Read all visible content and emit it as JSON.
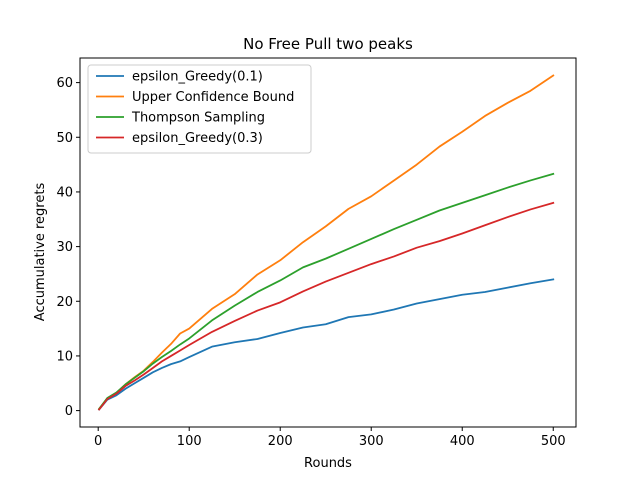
{
  "chart_data": {
    "type": "line",
    "title": "No Free Pull two peaks",
    "xlabel": "Rounds",
    "ylabel": "Accumulative regrets",
    "xlim": [
      -20,
      525
    ],
    "ylim": [
      -3,
      64.5
    ],
    "xticks": [
      0,
      100,
      200,
      300,
      400,
      500
    ],
    "yticks": [
      0,
      10,
      20,
      30,
      40,
      50,
      60
    ],
    "grid": false,
    "legend_position": "upper-left",
    "x": [
      1,
      10,
      20,
      30,
      40,
      50,
      60,
      70,
      80,
      90,
      100,
      125,
      150,
      175,
      200,
      225,
      250,
      275,
      300,
      325,
      350,
      375,
      400,
      425,
      450,
      475,
      500
    ],
    "series": [
      {
        "name": "epsilon_Greedy(0.1)",
        "color": "#1f77b4",
        "values": [
          0.2,
          2.0,
          2.8,
          4.0,
          5.0,
          6.0,
          7.0,
          7.8,
          8.5,
          9.0,
          9.8,
          11.7,
          12.5,
          13.1,
          14.2,
          15.2,
          15.8,
          17.1,
          17.6,
          18.5,
          19.6,
          20.4,
          21.2,
          21.7,
          22.5,
          23.3,
          24.0
        ]
      },
      {
        "name": "Upper Confidence Bound",
        "color": "#ff7f0e",
        "values": [
          0.3,
          2.2,
          3.2,
          4.8,
          6.1,
          7.3,
          8.9,
          10.6,
          12.2,
          14.1,
          15.0,
          18.6,
          21.3,
          24.9,
          27.5,
          30.8,
          33.7,
          36.9,
          39.2,
          42.1,
          45.0,
          48.3,
          51.0,
          53.9,
          56.3,
          58.5,
          61.3
        ]
      },
      {
        "name": "Thompson Sampling",
        "color": "#2ca02c",
        "values": [
          0.3,
          2.3,
          3.3,
          4.8,
          6.0,
          7.2,
          8.6,
          9.8,
          10.9,
          12.1,
          13.2,
          16.5,
          19.2,
          21.7,
          23.8,
          26.2,
          27.8,
          29.6,
          31.4,
          33.2,
          34.9,
          36.6,
          38.0,
          39.4,
          40.8,
          42.1,
          43.3
        ]
      },
      {
        "name": "epsilon_Greedy(0.3)",
        "color": "#d62728",
        "values": [
          0.2,
          2.1,
          3.1,
          4.5,
          5.5,
          6.6,
          7.8,
          9.0,
          10.0,
          11.0,
          12.0,
          14.4,
          16.4,
          18.3,
          19.8,
          21.8,
          23.6,
          25.2,
          26.8,
          28.2,
          29.8,
          31.0,
          32.4,
          33.9,
          35.4,
          36.8,
          38.0
        ]
      }
    ]
  }
}
